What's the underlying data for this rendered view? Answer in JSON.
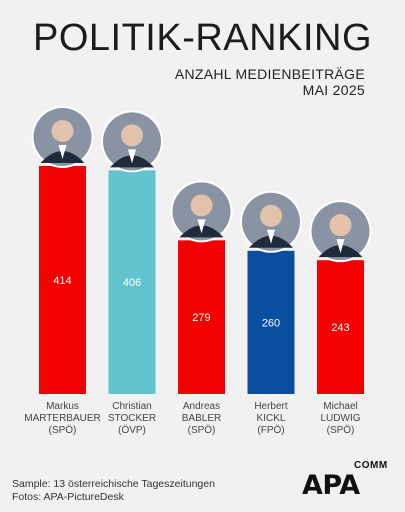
{
  "header": {
    "title": "POLITIK-RANKING",
    "subtitle_line1": "ANZAHL MEDIENBEITRÄGE",
    "subtitle_line2": "MAI 2025"
  },
  "footer": {
    "sample": "Sample: 13 österreichische Tageszeitungen",
    "photos": "Fotos: APA-PictureDesk"
  },
  "logo": {
    "brand": "APA",
    "suffix": "COMM"
  },
  "colors": {
    "SPÖ": "#f50000",
    "ÖVP": "#62c3cf",
    "FPÖ": "#0a4ea2"
  },
  "chart_data": {
    "type": "bar",
    "categories": [
      "Markus MARTERBAUER (SPÖ)",
      "Christian STOCKER (ÖVP)",
      "Andreas BABLER (SPÖ)",
      "Herbert KICKL (FPÖ)",
      "Michael LUDWIG (SPÖ)"
    ],
    "values": [
      414,
      406,
      279,
      260,
      243
    ],
    "bars": [
      {
        "first": "Markus",
        "last": "MARTERBAUER",
        "party": "(SPÖ)",
        "party_key": "SPÖ",
        "value": 414,
        "label": "414"
      },
      {
        "first": "Christian",
        "last": "STOCKER",
        "party": "(ÖVP)",
        "party_key": "ÖVP",
        "value": 406,
        "label": "406"
      },
      {
        "first": "Andreas",
        "last": "BABLER",
        "party": "(SPÖ)",
        "party_key": "SPÖ",
        "value": 279,
        "label": "279"
      },
      {
        "first": "Herbert",
        "last": "KICKL",
        "party": "(FPÖ)",
        "party_key": "FPÖ",
        "value": 260,
        "label": "260"
      },
      {
        "first": "Michael",
        "last": "LUDWIG",
        "party": "(SPÖ)",
        "party_key": "SPÖ",
        "value": 243,
        "label": "243"
      }
    ],
    "title": "POLITIK-RANKING",
    "ylim": [
      0,
      414
    ],
    "grid": false,
    "legend": "none"
  }
}
